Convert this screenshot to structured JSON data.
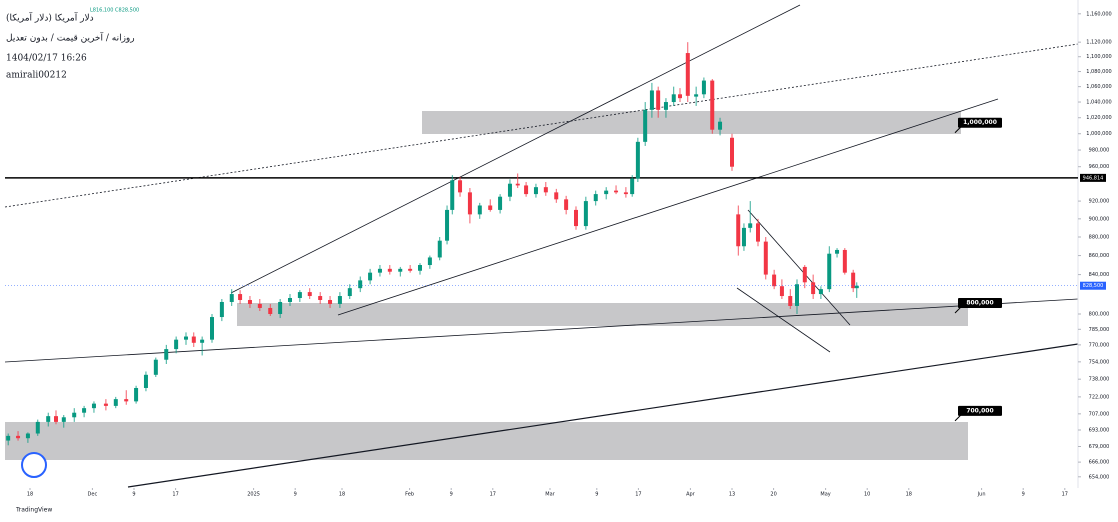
{
  "chart_data": {
    "type": "candlestick",
    "title": "دلار آمریکا (دلار آمریکا)",
    "subtitle": "روزانه / آخرین قیمت / بدون تعدیل",
    "timestamp": "1404/02/17 16:26",
    "author": "amirali00212",
    "info": "L816,100 C828,500",
    "brand": "TradingView",
    "log_scale": true,
    "up_color": "#089981",
    "down_color": "#f23645",
    "xlim": [
      -5,
      201
    ],
    "ylim": [
      645000,
      1180000
    ],
    "xticks": [
      {
        "value": 0,
        "label": "18"
      },
      {
        "value": 12,
        "label": "Dec"
      },
      {
        "value": 20,
        "label": "9"
      },
      {
        "value": 28,
        "label": "17"
      },
      {
        "value": 43,
        "label": "2025"
      },
      {
        "value": 51,
        "label": "9"
      },
      {
        "value": 60,
        "label": "18"
      },
      {
        "value": 73,
        "label": "Feb"
      },
      {
        "value": 81,
        "label": "9"
      },
      {
        "value": 89,
        "label": "17"
      },
      {
        "value": 100,
        "label": "Mar"
      },
      {
        "value": 109,
        "label": "9"
      },
      {
        "value": 117,
        "label": "17"
      },
      {
        "value": 127,
        "label": "Apr"
      },
      {
        "value": 135,
        "label": "13"
      },
      {
        "value": 143,
        "label": "20"
      },
      {
        "value": 153,
        "label": "May"
      },
      {
        "value": 161,
        "label": "10"
      },
      {
        "value": 169,
        "label": "18"
      },
      {
        "value": 183,
        "label": "Jun"
      },
      {
        "value": 191,
        "label": "9"
      },
      {
        "value": 199,
        "label": "17"
      }
    ],
    "yticks": [
      {
        "value": 1160000,
        "label": "1,160,000"
      },
      {
        "value": 1120000,
        "label": "1,120,000"
      },
      {
        "value": 1100000,
        "label": "1,100,000"
      },
      {
        "value": 1080000,
        "label": "1,080,000"
      },
      {
        "value": 1060000,
        "label": "1,060,000"
      },
      {
        "value": 1040000,
        "label": "1,040,000"
      },
      {
        "value": 1020000,
        "label": "1,020,000"
      },
      {
        "value": 1000000,
        "label": "1,000,000"
      },
      {
        "value": 980000,
        "label": "980,000"
      },
      {
        "value": 960000,
        "label": "960,000"
      },
      {
        "value": 920000,
        "label": "920,000"
      },
      {
        "value": 900000,
        "label": "900,000"
      },
      {
        "value": 880000,
        "label": "880,000"
      },
      {
        "value": 860000,
        "label": "860,000"
      },
      {
        "value": 840000,
        "label": "840,000"
      },
      {
        "value": 800000,
        "label": "800,000"
      },
      {
        "value": 785000,
        "label": "785,000"
      },
      {
        "value": 770000,
        "label": "770,000"
      },
      {
        "value": 754000,
        "label": "754,000"
      },
      {
        "value": 738000,
        "label": "738,000"
      },
      {
        "value": 722000,
        "label": "722,000"
      },
      {
        "value": 707000,
        "label": "707,000"
      },
      {
        "value": 693000,
        "label": "693,000"
      },
      {
        "value": 679000,
        "label": "679,000"
      },
      {
        "value": 666000,
        "label": "666,000"
      },
      {
        "value": 654000,
        "label": "654,000"
      }
    ],
    "levels": [
      {
        "value": 1000000,
        "label": "1,000,000"
      },
      {
        "value": 800000,
        "label": "800,000"
      },
      {
        "value": 700000,
        "label": "700,000"
      }
    ],
    "price_line": {
      "value": 946814,
      "label": "946,814"
    },
    "last_price_label": "828,500",
    "x": [
      -4.2,
      -2.3,
      -0.4,
      1.5,
      3.5,
      5,
      6.5,
      8.5,
      10.4,
      12.3,
      14.6,
      16.5,
      18.5,
      20.4,
      22.3,
      24.2,
      26.2,
      28.1,
      30,
      31.5,
      33.1,
      35,
      36.9,
      38.8,
      40.4,
      42.3,
      44.2,
      46.2,
      48.1,
      50,
      51.9,
      53.8,
      55.8,
      57.7,
      59.6,
      61.5,
      63.5,
      65.4,
      67.3,
      69.2,
      71.2,
      73.1,
      75,
      76.9,
      78.8,
      80.2,
      81.2,
      82.7,
      84.6,
      86.5,
      88.5,
      90.4,
      92.3,
      93.8,
      95.4,
      97.3,
      99.2,
      101.2,
      103.1,
      105,
      106.9,
      108.8,
      110.8,
      112.7,
      114.6,
      115.8,
      116.9,
      118.3,
      119.6,
      120.8,
      122.3,
      123.8,
      125,
      126.5,
      128.1,
      129.6,
      131.2,
      132.7,
      135,
      136.2,
      137.3,
      138.5,
      140,
      141.5,
      143.1,
      144.6,
      146.2,
      147.5,
      149,
      150.6,
      152.1,
      153.7,
      155.2,
      156.7,
      158.3,
      159
    ],
    "open": [
      684000,
      688000,
      686000,
      690000,
      700000,
      705000,
      700000,
      704000,
      708000,
      712000,
      716000,
      714000,
      720000,
      718000,
      730000,
      742000,
      756000,
      766000,
      775000,
      778000,
      772000,
      775000,
      797000,
      812000,
      820000,
      814000,
      810000,
      806000,
      800000,
      812000,
      816000,
      822000,
      818000,
      814000,
      810000,
      818000,
      826000,
      834000,
      842000,
      846000,
      843000,
      846000,
      844000,
      850000,
      858000,
      876000,
      910000,
      944000,
      930000,
      905000,
      915000,
      910000,
      925000,
      940000,
      938000,
      928000,
      936000,
      930000,
      922000,
      910000,
      892000,
      920000,
      928000,
      932000,
      930000,
      928000,
      946000,
      990000,
      1030000,
      1055000,
      1030000,
      1040000,
      1050000,
      1105000,
      1047000,
      1050000,
      1068000,
      1005000,
      995000,
      905000,
      870000,
      890000,
      895000,
      875000,
      840000,
      828000,
      818000,
      808000,
      848000,
      832000,
      820000,
      825000,
      862000,
      866000,
      842000,
      826000
    ],
    "high": [
      690000,
      692000,
      691000,
      702000,
      708000,
      710000,
      706000,
      712000,
      714000,
      718000,
      720000,
      722000,
      728000,
      732000,
      745000,
      758000,
      770000,
      778000,
      782000,
      782000,
      778000,
      800000,
      815000,
      825000,
      824000,
      818000,
      815000,
      810000,
      815000,
      820000,
      824000,
      826000,
      822000,
      818000,
      822000,
      830000,
      838000,
      846000,
      850000,
      850000,
      848000,
      850000,
      852000,
      860000,
      880000,
      915000,
      950000,
      948000,
      935000,
      918000,
      922000,
      928000,
      945000,
      952000,
      942000,
      940000,
      942000,
      934000,
      926000,
      914000,
      925000,
      932000,
      936000,
      938000,
      936000,
      950000,
      995000,
      1040000,
      1065000,
      1060000,
      1045000,
      1060000,
      1058000,
      1120000,
      1060000,
      1072000,
      1070000,
      1020000,
      1000000,
      915000,
      895000,
      920000,
      900000,
      880000,
      845000,
      835000,
      825000,
      835000,
      850000,
      840000,
      828000,
      870000,
      868000,
      868000,
      845000,
      832000
    ],
    "low": [
      680000,
      684000,
      682000,
      688000,
      696000,
      698000,
      695000,
      700000,
      704000,
      708000,
      710000,
      712000,
      715000,
      716000,
      727000,
      740000,
      752000,
      762000,
      770000,
      768000,
      760000,
      772000,
      793000,
      808000,
      810000,
      806000,
      803000,
      798000,
      796000,
      808000,
      812000,
      815000,
      810000,
      806000,
      806000,
      815000,
      822000,
      830000,
      838000,
      840000,
      838000,
      842000,
      840000,
      846000,
      855000,
      872000,
      905000,
      925000,
      895000,
      900000,
      908000,
      906000,
      920000,
      935000,
      925000,
      924000,
      926000,
      918000,
      905000,
      888000,
      888000,
      915000,
      922000,
      928000,
      924000,
      925000,
      942000,
      985000,
      1020000,
      1020000,
      1020000,
      1035000,
      1040000,
      1040000,
      1035000,
      1045000,
      1000000,
      998000,
      955000,
      860000,
      865000,
      885000,
      870000,
      835000,
      825000,
      815000,
      805000,
      800000,
      826000,
      815000,
      815000,
      822000,
      858000,
      840000,
      822000,
      816100
    ],
    "close": [
      688000,
      686000,
      690000,
      700000,
      705000,
      700000,
      704000,
      708000,
      712000,
      716000,
      714000,
      720000,
      718000,
      730000,
      742000,
      756000,
      766000,
      775000,
      778000,
      772000,
      775000,
      797000,
      812000,
      820000,
      814000,
      810000,
      806000,
      800000,
      812000,
      816000,
      822000,
      818000,
      814000,
      810000,
      818000,
      826000,
      834000,
      842000,
      846000,
      843000,
      846000,
      844000,
      850000,
      858000,
      876000,
      910000,
      944000,
      930000,
      905000,
      915000,
      910000,
      925000,
      940000,
      938000,
      928000,
      936000,
      930000,
      922000,
      910000,
      892000,
      920000,
      928000,
      932000,
      930000,
      928000,
      946000,
      990000,
      1030000,
      1055000,
      1030000,
      1040000,
      1050000,
      1045000,
      1048000,
      1050000,
      1068000,
      1005000,
      1015000,
      960000,
      870000,
      890000,
      895000,
      875000,
      840000,
      828000,
      818000,
      808000,
      830000,
      832000,
      820000,
      825000,
      862000,
      866000,
      842000,
      826000,
      828500
    ]
  }
}
